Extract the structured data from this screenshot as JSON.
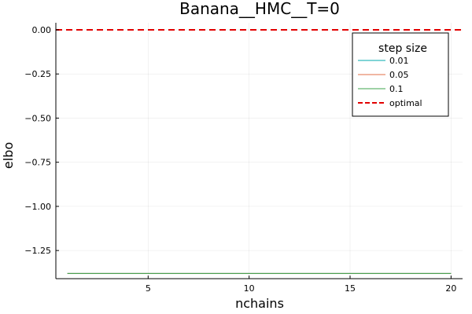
{
  "chart_data": {
    "type": "line",
    "title": "Banana__HMC__T=0",
    "xlabel": "nchains",
    "ylabel": "elbo",
    "xlim": [
      0.43,
      20.57
    ],
    "ylim": [
      -1.4095,
      0.04
    ],
    "xticks": [
      5,
      10,
      15,
      20
    ],
    "yticks": [
      0.0,
      -0.25,
      -0.5,
      -0.75,
      -1.0,
      -1.25
    ],
    "xtick_labels": [
      "5",
      "10",
      "15",
      "20"
    ],
    "ytick_labels": [
      "0.00",
      "−0.25",
      "−0.50",
      "−0.75",
      "−1.00",
      "−1.25"
    ],
    "grid": true,
    "legend_title": "step size",
    "legend_position": "top-right",
    "series": [
      {
        "name": "0.01",
        "color": "#00a9ad",
        "x": [
          1,
          20
        ],
        "y": [
          -1.38,
          -1.38
        ]
      },
      {
        "name": "0.05",
        "color": "#e26f46",
        "x": [
          1,
          20
        ],
        "y": [
          -1.38,
          -1.38
        ]
      },
      {
        "name": "0.1",
        "color": "#3da44d",
        "x": [
          1,
          20
        ],
        "y": [
          -1.38,
          -1.38
        ]
      }
    ],
    "reference_lines": [
      {
        "name": "optimal",
        "orientation": "horizontal",
        "y": 0.0,
        "color": "#e20000",
        "style": "dashed"
      }
    ]
  }
}
